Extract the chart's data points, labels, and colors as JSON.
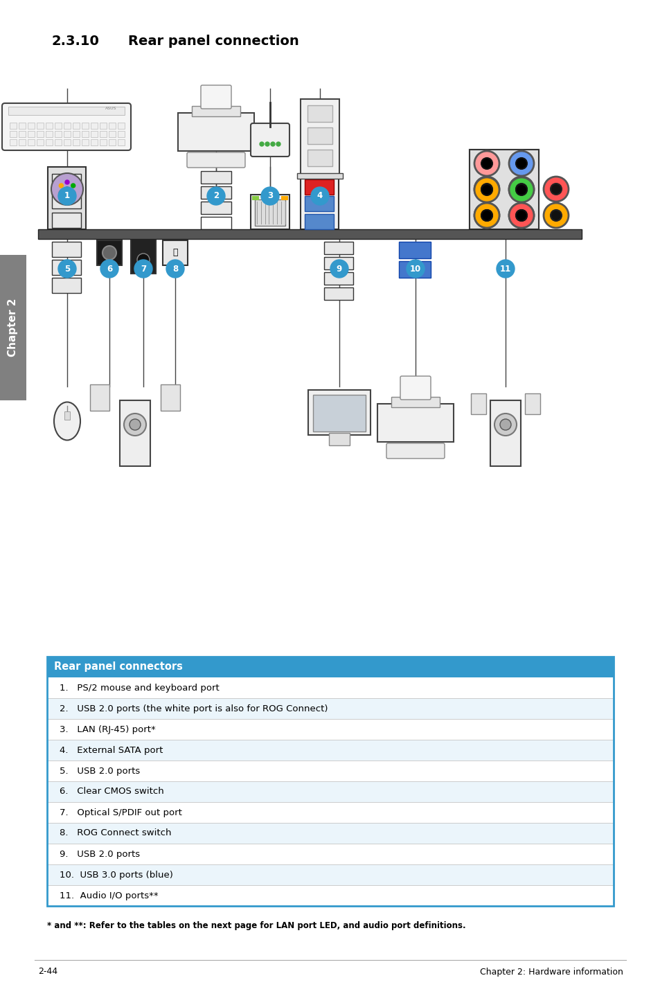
{
  "title_num": "2.3.10",
  "title_text": "Rear panel connection",
  "table_header": "Rear panel connectors",
  "table_header_bg": "#3399CC",
  "table_header_color": "#FFFFFF",
  "table_rows": [
    "1.   PS/2 mouse and keyboard port",
    "2.   USB 2.0 ports (the white port is also for ROG Connect)",
    "3.   LAN (RJ-45) port*",
    "4.   External SATA port",
    "5.   USB 2.0 ports",
    "6.   Clear CMOS switch",
    "7.   Optical S/PDIF out port",
    "8.   ROG Connect switch",
    "9.   USB 2.0 ports",
    "10.  USB 3.0 ports (blue)",
    "11.  Audio I/O ports**"
  ],
  "footnote": "* and **: Refer to the tables on the next page for LAN port LED, and audio port definitions.",
  "footer_left": "2-44",
  "footer_right": "Chapter 2: Hardware information",
  "chapter_tab_text": "Chapter 2",
  "chapter_tab_bg": "#808080",
  "bg_color": "#FFFFFF",
  "table_border_color": "#3399CC",
  "table_row_border": "#CCCCCC",
  "table_alt_bg": "#EBF5FB",
  "bubble_color": "#3399CC",
  "bubble_text_color": "#FFFFFF",
  "line_color": "#444444",
  "panel_bar_color": "#555555",
  "connector_edge": "#333333"
}
